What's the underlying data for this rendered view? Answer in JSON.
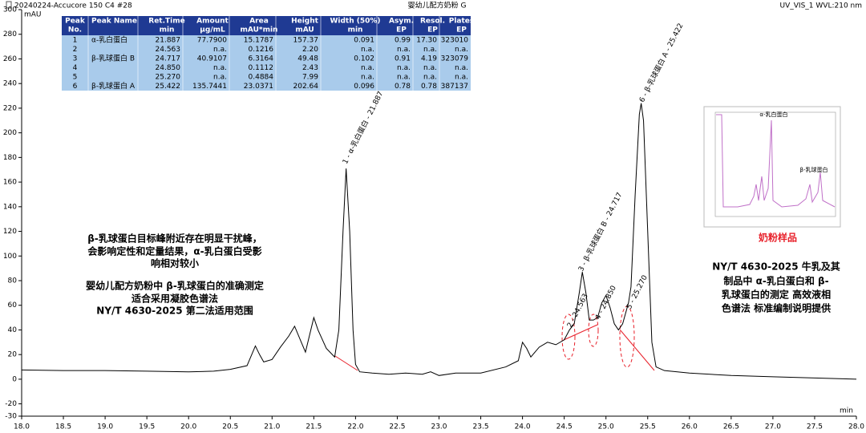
{
  "header": {
    "left": "20240224-Accucore 150 C4 #28",
    "center": "婴幼儿配方奶粉 G",
    "right": "UV_VIS_1 WVL:210 nm"
  },
  "chart_data": {
    "type": "line",
    "y_label": "mAU",
    "x_label": "min",
    "color": "#000000",
    "x": [
      18.0,
      18.5,
      19.0,
      19.5,
      20.0,
      20.3,
      20.5,
      20.7,
      20.8,
      20.85,
      20.9,
      21.0,
      21.1,
      21.2,
      21.27,
      21.35,
      21.4,
      21.5,
      21.55,
      21.65,
      21.75,
      21.8,
      21.85,
      21.887,
      21.93,
      21.97,
      22.0,
      22.05,
      22.2,
      22.4,
      22.6,
      22.8,
      22.9,
      23.0,
      23.2,
      23.5,
      23.8,
      23.95,
      24.0,
      24.05,
      24.1,
      24.2,
      24.3,
      24.4,
      24.5,
      24.563,
      24.62,
      24.68,
      24.717,
      24.76,
      24.8,
      24.85,
      24.9,
      24.95,
      25.0,
      25.05,
      25.1,
      25.15,
      25.2,
      25.27,
      25.3,
      25.35,
      25.4,
      25.422,
      25.45,
      25.5,
      25.55,
      25.6,
      25.7,
      26.0,
      26.5,
      27.0,
      27.5,
      28.0
    ],
    "values": [
      7.5,
      7,
      7,
      6.5,
      6,
      6.5,
      8,
      11,
      27,
      20,
      14,
      16,
      26,
      35,
      43,
      30,
      22,
      50,
      40,
      25,
      18,
      40,
      120,
      171,
      120,
      40,
      12,
      6,
      5,
      4,
      5,
      4,
      6,
      3,
      5,
      5,
      10,
      15,
      30,
      25,
      18,
      26,
      30,
      28,
      32,
      40,
      45,
      70,
      87,
      70,
      48,
      48,
      50,
      62,
      68,
      58,
      45,
      40,
      45,
      62,
      75,
      150,
      215,
      224,
      210,
      120,
      30,
      10,
      7,
      5,
      3,
      2,
      1,
      0
    ],
    "xlim": [
      18.0,
      28.0
    ],
    "xticks": [
      {
        "value": 18,
        "label": "18.0"
      },
      {
        "value": 18.5,
        "label": "18.5"
      },
      {
        "value": 19,
        "label": "19.0"
      },
      {
        "value": 19.5,
        "label": "19.5"
      },
      {
        "value": 20,
        "label": "20.0"
      },
      {
        "value": 20.5,
        "label": "20.5"
      },
      {
        "value": 21,
        "label": "21.0"
      },
      {
        "value": 21.5,
        "label": "21.5"
      },
      {
        "value": 22,
        "label": "22.0"
      },
      {
        "value": 22.5,
        "label": "22.5"
      },
      {
        "value": 23,
        "label": "23.0"
      },
      {
        "value": 23.5,
        "label": "23.5"
      },
      {
        "value": 24,
        "label": "24.0"
      },
      {
        "value": 24.5,
        "label": "24.5"
      },
      {
        "value": 25,
        "label": "25.0"
      },
      {
        "value": 25.5,
        "label": "25.5"
      },
      {
        "value": 26,
        "label": "26.0"
      },
      {
        "value": 26.5,
        "label": "26.5"
      },
      {
        "value": 27,
        "label": "27.0"
      },
      {
        "value": 27.5,
        "label": "27.5"
      },
      {
        "value": 28,
        "label": "28.0"
      }
    ],
    "ylim": [
      -30,
      300
    ],
    "yticks": [
      -30,
      -20,
      0,
      20,
      40,
      60,
      80,
      100,
      120,
      140,
      160,
      180,
      200,
      220,
      240,
      260,
      280,
      300
    ],
    "annotations": [
      "1 - α-乳白蛋白 - 21.887",
      "2 - 24.563",
      "3 - β-乳球蛋白 B - 24.717",
      "4 - 24.850",
      "5 - 25.270",
      "6 - β-乳球蛋白 A - 25.422"
    ]
  },
  "table": {
    "header": [
      [
        "Peak",
        "Peak Name",
        "Ret.Time",
        "Amount",
        "Area",
        "Height",
        "Width (50%)",
        "Asym.",
        "Resol.",
        "Plates"
      ],
      [
        "No.",
        "",
        "min",
        "μg/mL",
        "mAU*min",
        "mAU",
        "min",
        "EP",
        "EP",
        "EP"
      ]
    ],
    "rows": [
      [
        "1",
        "α-乳白蛋白",
        "21.887",
        "77.7900",
        "15.1787",
        "157.37",
        "0.091",
        "0.99",
        "17.30",
        "323010"
      ],
      [
        "2",
        "",
        "24.563",
        "n.a.",
        "0.1216",
        "2.20",
        "n.a.",
        "n.a.",
        "n.a.",
        "n.a."
      ],
      [
        "3",
        "β-乳球蛋白 B",
        "24.717",
        "40.9107",
        "6.3164",
        "49.48",
        "0.102",
        "0.91",
        "4.19",
        "323079"
      ],
      [
        "4",
        "",
        "24.850",
        "n.a.",
        "0.1112",
        "2.43",
        "n.a.",
        "n.a.",
        "n.a.",
        "n.a."
      ],
      [
        "5",
        "",
        "25.270",
        "n.a.",
        "0.4884",
        "7.99",
        "n.a.",
        "n.a.",
        "n.a.",
        "n.a."
      ],
      [
        "6",
        "β-乳球蛋白 A",
        "25.422",
        "135.7441",
        "23.0371",
        "202.64",
        "0.096",
        "0.78",
        "0.78",
        "387137"
      ]
    ]
  },
  "notes": {
    "left_1": [
      "β-乳球蛋白目标峰附近存在明显干扰峰，",
      "会影响定性和定量结果，α-乳白蛋白受影",
      "响相对较小"
    ],
    "left_2": [
      "婴幼儿配方奶粉中 β-乳球蛋白的准确测定",
      "适合采用凝胶色谱法",
      "NY/T 4630-2025 第二法适用范围"
    ],
    "right": [
      "NY/T 4630-2025 牛乳及其",
      "制品中 α-乳白蛋白和 β-",
      "乳球蛋白的测定 高效液相",
      "色谱法 标准编制说明提供"
    ]
  },
  "inset": {
    "label_a": "α-乳白蛋白",
    "label_b": "β-乳球蛋白",
    "caption": "奶粉样品"
  }
}
